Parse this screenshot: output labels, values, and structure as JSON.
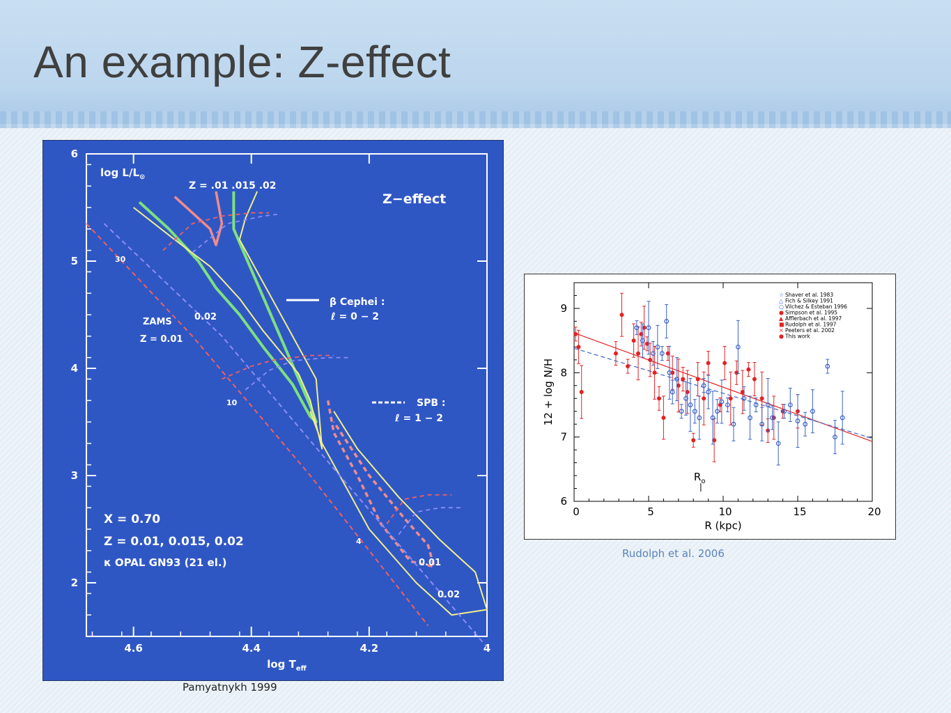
{
  "slide": {
    "title": "An example: Z-effect",
    "left_caption": "Pamyatnykh 1999",
    "right_caption": "Rudolph et al. 2006"
  },
  "colors": {
    "left_bg": "#2f57c4",
    "frame": "#ffffff",
    "z001": "#f08c8c",
    "z0015": "#7ee07e",
    "z002": "#f2ef8c",
    "zams_red": "#f06060",
    "zams_blue": "#8c8cf5",
    "hii_red": "#e32222",
    "hii_blue": "#3b62c8"
  },
  "chart_data": [
    {
      "type": "line",
      "xlabel": "log T",
      "xlabel_sub": "eff",
      "ylabel": "log L/L",
      "ylabel_sub": "⊙",
      "xlim": [
        4.68,
        4.0
      ],
      "ylim": [
        1.5,
        6.0
      ],
      "x_ticks": [
        "4.6",
        "4.4",
        "4.2",
        "4"
      ],
      "x_tick_values": [
        4.6,
        4.4,
        4.2,
        4.0
      ],
      "y_ticks": [
        "2",
        "3",
        "4",
        "5",
        "6"
      ],
      "y_tick_values": [
        2,
        3,
        4,
        5,
        6
      ],
      "title": "Z−effect",
      "z_header": "Z = .01  .015 .02",
      "legend": {
        "solid_label": "β Cephei :",
        "solid_sub": "ℓ = 0 − 2",
        "dashed_label": "SPB :",
        "dashed_sub": "ℓ = 1 − 2"
      },
      "annotations": {
        "zams": "ZAMS",
        "zams_z": "Z = 0.01",
        "z002": "0.02",
        "mass_30": "30",
        "mass_10": "10",
        "mass_4": "4",
        "spb_001": "0.01",
        "spb_002": "0.02"
      },
      "params": {
        "x": "X = 0.70",
        "z": "Z = 0.01, 0.015, 0.02",
        "kappa": "κ  OPAL GN93 (21 el.)"
      },
      "series": [
        {
          "id": "beta-cep-z0.01",
          "style": "solid",
          "x": [
            4.53,
            4.5,
            4.47,
            4.46,
            4.45,
            4.46
          ],
          "y": [
            5.6,
            5.45,
            5.3,
            5.15,
            5.35,
            5.65
          ]
        },
        {
          "id": "beta-cep-z0.015",
          "style": "solid",
          "x": [
            4.59,
            4.54,
            4.49,
            4.46,
            4.42,
            4.38,
            4.33,
            4.3,
            4.29,
            4.3,
            4.43,
            4.43
          ],
          "y": [
            5.55,
            5.3,
            5.0,
            4.75,
            4.5,
            4.2,
            3.85,
            3.55,
            3.5,
            3.65,
            5.3,
            5.65
          ]
        },
        {
          "id": "beta-cep-z0.02",
          "style": "solid",
          "x": [
            4.6,
            4.53,
            4.47,
            4.42,
            4.38,
            4.32,
            4.3,
            4.28,
            4.29,
            4.42,
            4.41,
            4.39
          ],
          "y": [
            5.5,
            5.2,
            4.95,
            4.65,
            4.35,
            3.95,
            3.7,
            3.25,
            3.9,
            5.2,
            5.4,
            5.65
          ]
        },
        {
          "id": "spb-z0.01",
          "style": "dashed",
          "x": [
            4.27,
            4.26,
            4.22,
            4.18,
            4.13,
            4.09,
            4.1,
            4.14,
            4.2,
            4.26
          ],
          "y": [
            3.7,
            3.4,
            3.0,
            2.55,
            2.2,
            2.15,
            2.35,
            2.6,
            3.0,
            3.5
          ]
        },
        {
          "id": "spb-z0.02",
          "style": "solid",
          "x": [
            4.26,
            4.22,
            4.15,
            4.08,
            4.02,
            4.0,
            4.06,
            4.12,
            4.2,
            4.25,
            4.28,
            4.3
          ],
          "y": [
            3.6,
            3.25,
            2.8,
            2.4,
            2.1,
            1.75,
            1.7,
            2.0,
            2.5,
            3.0,
            3.3,
            3.6
          ]
        },
        {
          "id": "zams-z0.01",
          "style": "dashed",
          "x": [
            4.68,
            4.5,
            4.3,
            4.1
          ],
          "y": [
            5.35,
            4.3,
            3.0,
            1.6
          ]
        },
        {
          "id": "zams-z0.02",
          "style": "dashed",
          "x": [
            4.65,
            4.45,
            4.25,
            4.0
          ],
          "y": [
            5.35,
            4.3,
            3.0,
            1.4
          ]
        }
      ]
    },
    {
      "type": "scatter",
      "xlabel": "R (kpc)",
      "ylabel": "12 + log N/H",
      "xlim": [
        0,
        20
      ],
      "ylim": [
        6,
        9.4
      ],
      "x_ticks": [
        "0",
        "5",
        "10",
        "15",
        "20"
      ],
      "x_tick_values": [
        0,
        5,
        10,
        15,
        20
      ],
      "y_ticks": [
        "6",
        "7",
        "8",
        "9"
      ],
      "y_tick_values": [
        6,
        7,
        8,
        9
      ],
      "marker_label": "R",
      "marker_sub": "o",
      "marker_x": 8.5,
      "legend": [
        {
          "symbol": "☆",
          "label": "Shaver et al. 1983",
          "color": "#3b62c8"
        },
        {
          "symbol": "△",
          "label": "Fich & Silkey 1991",
          "color": "#3b62c8"
        },
        {
          "symbol": "○",
          "label": "Vilchez & Esteban 1996",
          "color": "#3b62c8"
        },
        {
          "symbol": "●",
          "label": "Simpson et al. 1995",
          "color": "#e32222"
        },
        {
          "symbol": "▲",
          "label": "Afflerbach et al. 1997",
          "color": "#e32222"
        },
        {
          "symbol": "■",
          "label": "Rudolph et al. 1997",
          "color": "#e32222"
        },
        {
          "symbol": "×",
          "label": "Peeters et al. 2002",
          "color": "#e32222"
        },
        {
          "symbol": "●",
          "label": "This work",
          "color": "#e32222"
        }
      ],
      "fits": [
        {
          "id": "fit-red",
          "style": "solid",
          "x": [
            0,
            20
          ],
          "y": [
            8.62,
            6.93
          ]
        },
        {
          "id": "fit-blue",
          "style": "dashed",
          "x": [
            0,
            20
          ],
          "y": [
            8.38,
            6.98
          ]
        }
      ],
      "series": [
        {
          "name": "",
          "group": "red",
          "x": [
            0.1,
            0.3,
            0.5,
            2.8,
            3.2,
            3.6,
            4.0,
            4.3,
            4.5,
            4.7,
            4.9,
            5.1,
            5.4,
            5.7,
            6.0,
            6.3,
            6.6,
            7.0,
            7.3,
            7.6,
            8.0,
            8.3,
            8.7,
            9.0,
            9.4,
            9.8,
            10.1,
            10.5,
            10.9,
            11.3,
            11.7,
            12.1,
            12.6,
            13.0,
            13.4,
            14.0,
            15.0
          ],
          "y": [
            8.6,
            8.4,
            7.7,
            8.3,
            8.9,
            8.1,
            8.5,
            8.3,
            8.6,
            8.7,
            8.45,
            8.2,
            8.0,
            7.6,
            7.3,
            8.3,
            8.0,
            7.8,
            7.9,
            7.7,
            6.95,
            7.9,
            7.6,
            8.15,
            6.95,
            7.5,
            8.15,
            7.6,
            8.0,
            7.7,
            8.05,
            7.9,
            7.6,
            7.1,
            7.3,
            7.4,
            7.4
          ]
        },
        {
          "name": "",
          "group": "blue",
          "x": [
            4.2,
            4.6,
            5.0,
            5.3,
            5.6,
            5.9,
            6.2,
            6.4,
            6.6,
            6.9,
            7.2,
            7.5,
            7.8,
            8.1,
            8.4,
            8.7,
            9.0,
            9.3,
            9.6,
            9.9,
            10.3,
            10.7,
            11.0,
            11.4,
            11.8,
            12.2,
            12.6,
            13.0,
            13.3,
            13.7,
            14.1,
            14.5,
            15.0,
            15.5,
            16.0,
            17.0,
            17.5,
            18.0
          ],
          "y": [
            8.7,
            8.5,
            8.7,
            8.3,
            8.4,
            8.3,
            8.8,
            8.0,
            7.7,
            7.9,
            7.4,
            7.6,
            7.5,
            7.4,
            7.3,
            7.8,
            7.7,
            7.3,
            7.4,
            7.55,
            7.5,
            7.2,
            8.4,
            7.6,
            7.3,
            7.5,
            7.2,
            7.5,
            7.3,
            6.9,
            7.4,
            7.5,
            7.25,
            7.2,
            7.4,
            8.1,
            7.0,
            7.3
          ]
        }
      ]
    }
  ]
}
